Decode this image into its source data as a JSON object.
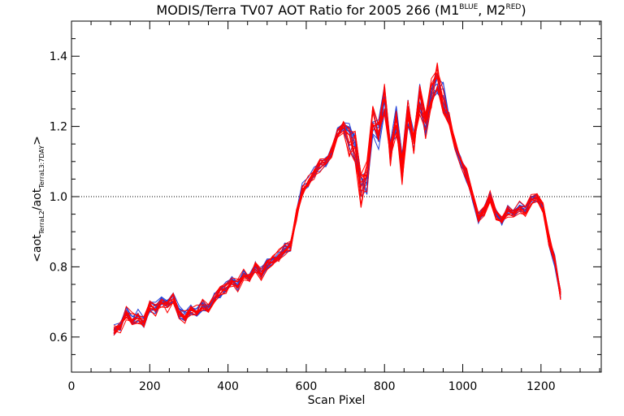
{
  "chart_data": {
    "type": "line",
    "title": {
      "main": "MODIS/Terra TV07 AOT Ratio for 2005 266 (M1",
      "sup1": "BLUE",
      "mid": ", M2",
      "sup2": "RED",
      "end": ")"
    },
    "xlabel": "Scan Pixel",
    "ylabel": {
      "open": "<aot",
      "sub1": "TerraL2",
      "slash": "/aot",
      "sub2": "TerraL3:7DAY",
      "close": ">"
    },
    "xlim": [
      0,
      1354
    ],
    "ylim": [
      0.5,
      1.5
    ],
    "x_ticks": [
      0,
      200,
      400,
      600,
      800,
      1000,
      1200
    ],
    "x_tick_labels": [
      "0",
      "200",
      "400",
      "600",
      "800",
      "1000",
      "1200"
    ],
    "y_ticks": [
      0.6,
      0.8,
      1.0,
      1.2,
      1.4
    ],
    "y_tick_labels": [
      "0.6",
      "0.8",
      "1.0",
      "1.2",
      "1.4"
    ],
    "reference_line": {
      "y": 1.0,
      "style": "dotted"
    },
    "colors": {
      "M1": "#1f3fd8",
      "M2": "#ff0000"
    },
    "series_groups": [
      {
        "name": "M1",
        "color_key": "M1",
        "count": 10
      },
      {
        "name": "M2",
        "color_key": "M2",
        "count": 10
      }
    ],
    "x": [
      108,
      125,
      140,
      155,
      170,
      185,
      200,
      215,
      230,
      245,
      260,
      275,
      290,
      305,
      320,
      335,
      350,
      365,
      380,
      395,
      410,
      425,
      440,
      455,
      470,
      485,
      500,
      515,
      530,
      545,
      560,
      575,
      590,
      605,
      620,
      635,
      650,
      665,
      680,
      695,
      710,
      725,
      740,
      755,
      770,
      785,
      800,
      815,
      830,
      845,
      860,
      875,
      890,
      905,
      920,
      935,
      950,
      965,
      980,
      995,
      1010,
      1025,
      1040,
      1055,
      1070,
      1085,
      1100,
      1115,
      1130,
      1145,
      1160,
      1175,
      1190,
      1205,
      1220,
      1235,
      1250
    ],
    "mean_y": [
      0.62,
      0.63,
      0.67,
      0.65,
      0.66,
      0.64,
      0.69,
      0.68,
      0.7,
      0.69,
      0.71,
      0.67,
      0.66,
      0.68,
      0.67,
      0.69,
      0.68,
      0.71,
      0.73,
      0.74,
      0.76,
      0.75,
      0.78,
      0.77,
      0.8,
      0.78,
      0.81,
      0.82,
      0.83,
      0.85,
      0.86,
      0.95,
      1.02,
      1.04,
      1.07,
      1.09,
      1.1,
      1.13,
      1.18,
      1.2,
      1.16,
      1.14,
      1.02,
      1.05,
      1.22,
      1.18,
      1.28,
      1.12,
      1.22,
      1.08,
      1.24,
      1.15,
      1.28,
      1.2,
      1.3,
      1.34,
      1.28,
      1.22,
      1.15,
      1.1,
      1.06,
      1.0,
      0.94,
      0.96,
      1.0,
      0.95,
      0.93,
      0.96,
      0.95,
      0.97,
      0.96,
      0.99,
      1.0,
      0.97,
      0.88,
      0.82,
      0.72
    ]
  }
}
